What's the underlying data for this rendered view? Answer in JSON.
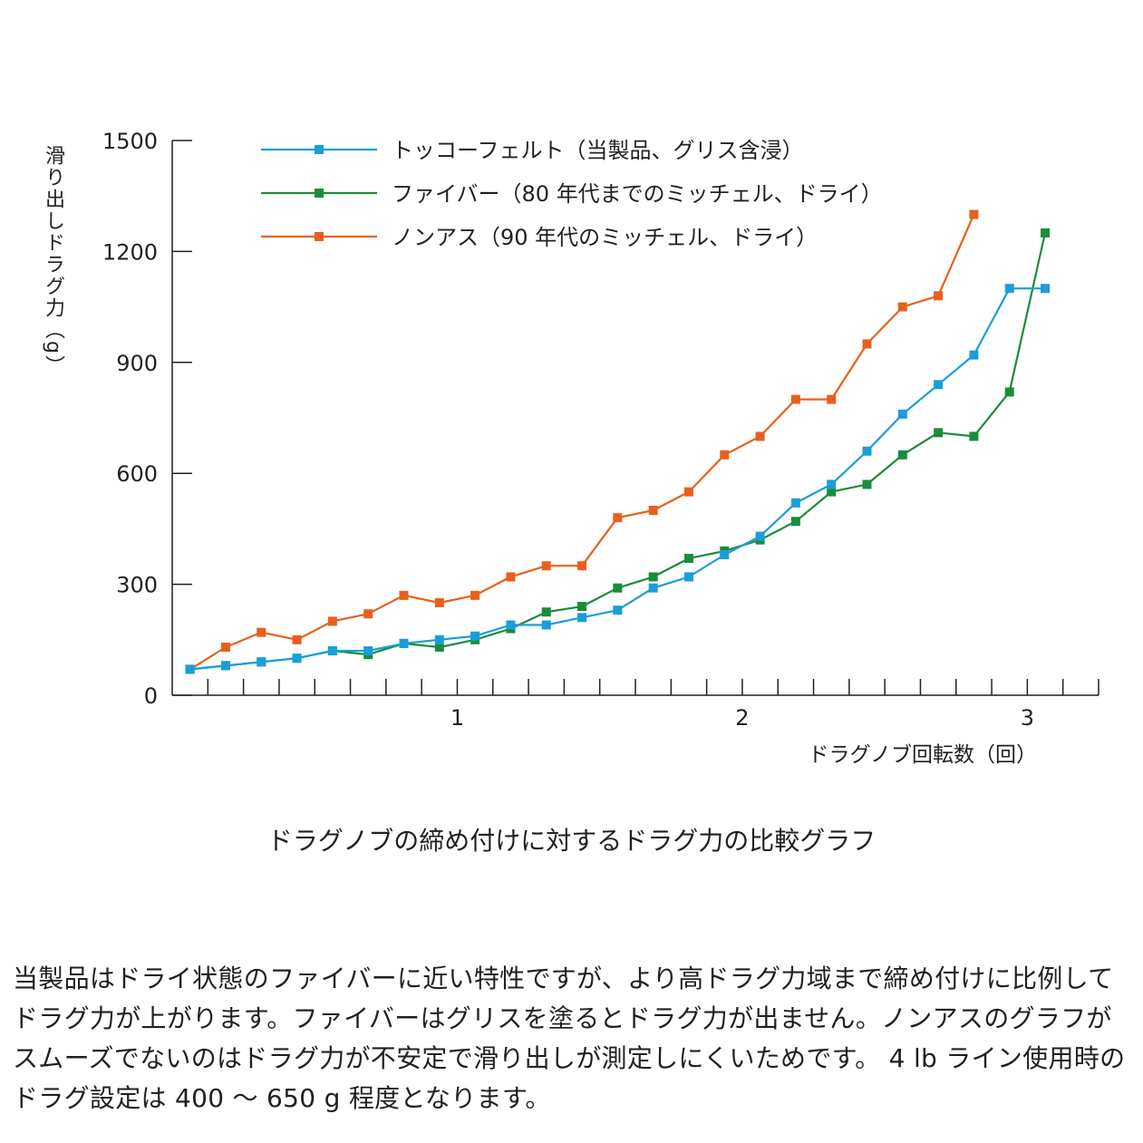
{
  "chart_data": {
    "type": "line",
    "ylabel": "滑り出しドラグ力（g）",
    "xlabel": "ドラグノブ回転数（回）",
    "ylim": [
      0,
      1500
    ],
    "y_ticks": [
      0,
      300,
      600,
      900,
      1200,
      1500
    ],
    "y_tick_labels": [
      "0",
      "300",
      "600",
      "900",
      "1200",
      "1500"
    ],
    "x_ticks": [
      1,
      2,
      3
    ],
    "x_tick_labels": [
      "1",
      "2",
      "3"
    ],
    "x_step": 0.125,
    "x_max": 3.25,
    "legend_placement": "top-left",
    "series": [
      {
        "name": "トッコーフェルト（当製品、グリス含浸）",
        "color": "#1a9ed9",
        "x": [
          0.0625,
          0.1875,
          0.3125,
          0.4375,
          0.5625,
          0.6875,
          0.8125,
          0.9375,
          1.0625,
          1.1875,
          1.3125,
          1.4375,
          1.5625,
          1.6875,
          1.8125,
          1.9375,
          2.0625,
          2.1875,
          2.3125,
          2.4375,
          2.5625,
          2.6875,
          2.8125,
          2.9375,
          3.0625
        ],
        "values": [
          70,
          80,
          90,
          100,
          120,
          120,
          140,
          150,
          160,
          190,
          190,
          210,
          230,
          290,
          320,
          380,
          430,
          520,
          570,
          660,
          760,
          840,
          920,
          1100,
          1100
        ]
      },
      {
        "name": "ファイバー（80 年代までのミッチェル、ドライ）",
        "color": "#1a8c3c",
        "x": [
          0.0625,
          0.1875,
          0.3125,
          0.4375,
          0.5625,
          0.6875,
          0.8125,
          0.9375,
          1.0625,
          1.1875,
          1.3125,
          1.4375,
          1.5625,
          1.6875,
          1.8125,
          1.9375,
          2.0625,
          2.1875,
          2.3125,
          2.4375,
          2.5625,
          2.6875,
          2.8125,
          2.9375,
          3.0625
        ],
        "values": [
          70,
          80,
          90,
          100,
          120,
          110,
          140,
          130,
          150,
          180,
          225,
          240,
          290,
          320,
          370,
          390,
          420,
          470,
          550,
          570,
          650,
          710,
          700,
          820,
          1250
        ]
      },
      {
        "name": "ノンアス（90 年代のミッチェル、ドライ）",
        "color": "#e8601c",
        "x": [
          0.0625,
          0.1875,
          0.3125,
          0.4375,
          0.5625,
          0.6875,
          0.8125,
          0.9375,
          1.0625,
          1.1875,
          1.3125,
          1.4375,
          1.5625,
          1.6875,
          1.8125,
          1.9375,
          2.0625,
          2.1875,
          2.3125,
          2.4375,
          2.5625,
          2.6875,
          2.8125
        ],
        "values": [
          70,
          130,
          170,
          150,
          200,
          220,
          270,
          250,
          270,
          320,
          350,
          350,
          480,
          500,
          550,
          650,
          700,
          800,
          800,
          950,
          1050,
          1080,
          1300
        ]
      }
    ]
  },
  "caption": "ドラグノブの締め付けに対するドラグ力の比較グラフ",
  "description": "当製品はドライ状態のファイバーに近い特性ですが、より高ドラグ力域まで締め付けに比例してドラグ力が上がります。ファイバーはグリスを塗るとドラグ力が出ません。ノンアスのグラフがスムーズでないのはドラグ力が不安定で滑り出しが測定しにくいためです。 4 lb ライン使用時のドラグ設定は 400 ～ 650 g 程度となります。"
}
